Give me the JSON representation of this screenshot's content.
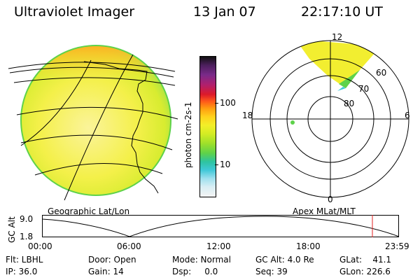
{
  "header": {
    "title": "Ultraviolet Imager",
    "date": "13 Jan 07",
    "time": "22:17:10 UT"
  },
  "colorbar": {
    "label": "photon cm-2s-1",
    "ticks": [
      "100",
      "10"
    ],
    "colors": [
      "#101010",
      "#4b1f5c",
      "#7a2a8a",
      "#b0206e",
      "#dd1a2a",
      "#ff5a1a",
      "#ff9e10",
      "#ffd21c",
      "#f3ef28",
      "#d4ec24",
      "#9ee02a",
      "#5ed24a",
      "#2ec3a0",
      "#40c8d8",
      "#9ee0ee",
      "#d8eef4",
      "#f4f4f4"
    ]
  },
  "geo_map": {
    "label": "Geographic Lat/Lon"
  },
  "polar_map": {
    "label": "Apex MLat/MLT",
    "mlt_labels": {
      "top": "12",
      "left": "18",
      "right": "6",
      "bottom": "0"
    },
    "lat_labels": [
      "60",
      "70",
      "80"
    ]
  },
  "timeline": {
    "axis_label": "GC Alt",
    "y_ticks": [
      "9.0",
      "1.8"
    ],
    "x_ticks": [
      "00:00",
      "06:00",
      "12:00",
      "18:00",
      "23:59"
    ],
    "marker_color": "#e02020"
  },
  "info": {
    "flt": "Flt: LBHL",
    "ip": "IP: 36.0",
    "door": "Door: Open",
    "gain": "Gain: 14",
    "mode": "Mode: Normal",
    "dsp": "Dsp:     0.0",
    "gcalt": "GC Alt: 4.0 Re",
    "seq": "Seq: 39",
    "glat": "GLat:    41.1",
    "glon": "GLon: 226.6"
  }
}
